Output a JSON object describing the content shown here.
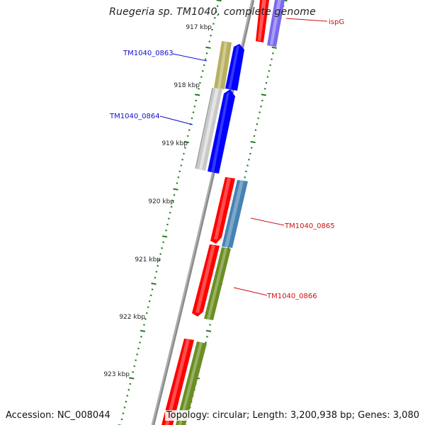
{
  "title": "Ruegeria sp. TM1040, complete genome",
  "accession_label": "Accession: NC_008044",
  "topology_label": "Topology: circular; Length: 3,200,938 bp; Genes: 3,080",
  "colors": {
    "backbone": "#8a8a8a",
    "ticks": "#1e7a1e",
    "label_blue": "#1010cc",
    "label_red": "#d01010"
  },
  "kbp_ticks": [
    "917 kbp",
    "918 kbp",
    "919 kbp",
    "920 kbp",
    "921 kbp",
    "922 kbp",
    "923 kbp"
  ],
  "features": [
    {
      "id": "ispG-red",
      "color": "#ff0000",
      "label": ""
    },
    {
      "id": "ispG-lavender",
      "color": "#7b68ee",
      "label": ""
    },
    {
      "id": "olive-small",
      "color": "#b8b060",
      "label": ""
    },
    {
      "id": "TM1040_0863",
      "color": "#0000ff",
      "label": ""
    },
    {
      "id": "grey-long",
      "color": "#c8c8c8",
      "label": ""
    },
    {
      "id": "TM1040_0864",
      "color": "#0000ff",
      "label": ""
    },
    {
      "id": "TM1040_0865-red",
      "color": "#ff0000",
      "label": ""
    },
    {
      "id": "TM1040_0865-steel",
      "color": "#4682b4",
      "label": ""
    },
    {
      "id": "TM1040_0866-red",
      "color": "#ff0000",
      "label": ""
    },
    {
      "id": "TM1040_0866-olive",
      "color": "#6b8e23",
      "label": ""
    },
    {
      "id": "bottom-red",
      "color": "#ff0000",
      "label": ""
    },
    {
      "id": "bottom-olive",
      "color": "#6b8e23",
      "label": ""
    }
  ],
  "gene_labels": [
    {
      "text": "ispG",
      "color": "#d01010"
    },
    {
      "text": "TM1040_0863",
      "color": "#1010cc"
    },
    {
      "text": "TM1040_0864",
      "color": "#1010cc"
    },
    {
      "text": "TM1040_0865",
      "color": "#d01010"
    },
    {
      "text": "TM1040_0866",
      "color": "#d01010"
    }
  ]
}
